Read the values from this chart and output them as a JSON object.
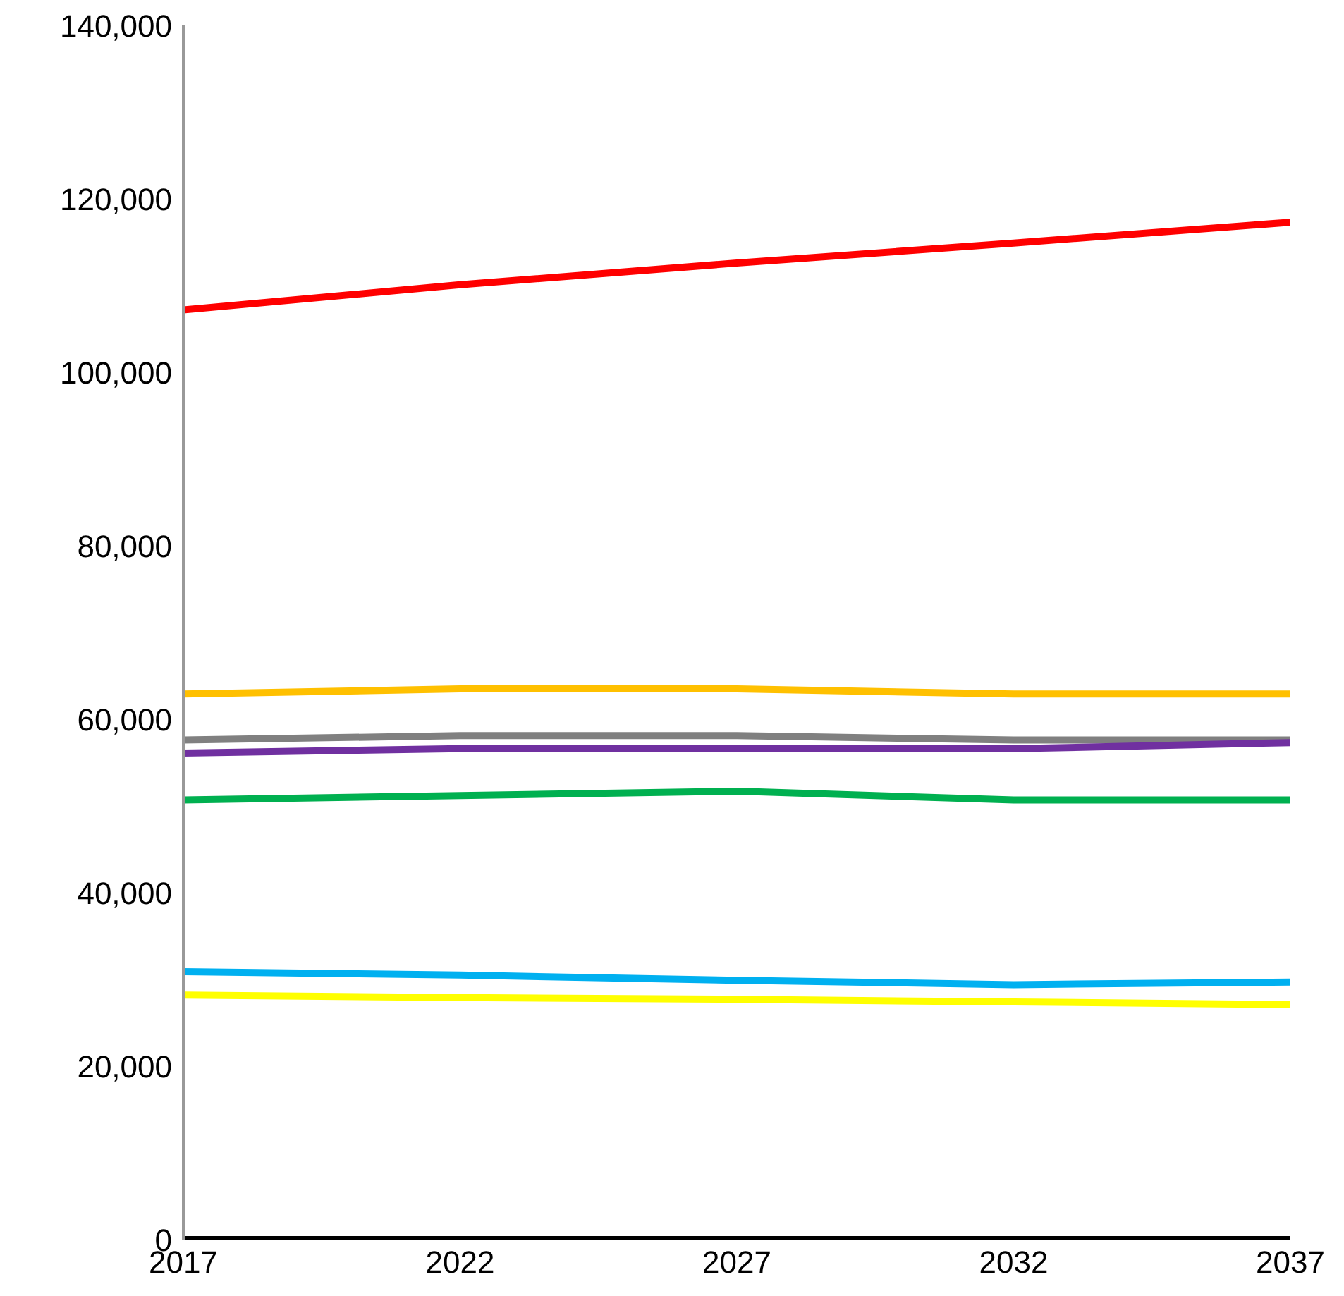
{
  "chart_data": {
    "type": "line",
    "x": [
      2017,
      2022,
      2027,
      2032,
      2037
    ],
    "xlim": [
      2017,
      2037
    ],
    "xticks": [
      2017,
      2022,
      2027,
      2032,
      2037
    ],
    "ylim": [
      0,
      140000
    ],
    "yticks": [
      {
        "value": 0,
        "label": "0"
      },
      {
        "value": 20000,
        "label": "20,000"
      },
      {
        "value": 40000,
        "label": "40,000"
      },
      {
        "value": 60000,
        "label": "60,000"
      },
      {
        "value": 80000,
        "label": "80,000"
      },
      {
        "value": 100000,
        "label": "100,000"
      },
      {
        "value": 120000,
        "label": "120,000"
      },
      {
        "value": 140000,
        "label": "140,000"
      }
    ],
    "grid": false,
    "legend": false,
    "marker": "none",
    "line_style": "solid",
    "series": [
      {
        "color": "#ff0000",
        "values": [
          107200,
          110100,
          112600,
          114900,
          117300
        ]
      },
      {
        "color": "#ffc000",
        "values": [
          62900,
          63500,
          63500,
          62900,
          62900
        ]
      },
      {
        "color": "#808080",
        "values": [
          57600,
          58100,
          58100,
          57600,
          57600
        ]
      },
      {
        "color": "#7030a0",
        "values": [
          56100,
          56600,
          56600,
          56600,
          57300
        ]
      },
      {
        "color": "#00b050",
        "values": [
          50700,
          51200,
          51700,
          50700,
          50700
        ]
      },
      {
        "color": "#00b0f0",
        "values": [
          30900,
          30500,
          29900,
          29400,
          29700
        ]
      },
      {
        "color": "#ffff00",
        "values": [
          28200,
          27900,
          27700,
          27400,
          27100
        ]
      },
      {
        "color": "#000000",
        "values": [
          0,
          0,
          0,
          0,
          0
        ]
      }
    ]
  }
}
